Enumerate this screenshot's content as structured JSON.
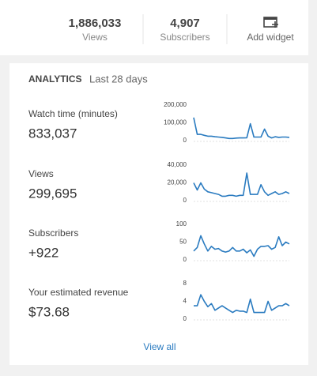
{
  "stats": [
    {
      "value": "1,886,033",
      "label": "Views"
    },
    {
      "value": "4,907",
      "label": "Subscribers"
    }
  ],
  "add_widget": "Add widget",
  "analytics": {
    "title": "ANALYTICS",
    "period": "Last 28 days",
    "metrics": [
      {
        "label": "Watch time (minutes)",
        "value": "833,037",
        "chart": {
          "type": "line",
          "color": "#2a7bc0",
          "ylim": [
            0,
            200000
          ],
          "yticks": [
            0,
            {
              "value": 100000,
              "label": "100,000"
            },
            {
              "value": 200000,
              "label": "200,000"
            }
          ],
          "values": [
            130000,
            35000,
            35000,
            30000,
            25000,
            25000,
            22000,
            20000,
            18000,
            15000,
            12000,
            12000,
            14000,
            15000,
            15000,
            16000,
            95000,
            20000,
            20000,
            20000,
            65000,
            25000,
            15000,
            22000,
            18000,
            20000,
            20000,
            18000
          ]
        }
      },
      {
        "label": "Views",
        "value": "299,695",
        "chart": {
          "type": "line",
          "color": "#2a7bc0",
          "ylim": [
            0,
            40000
          ],
          "yticks": [
            0,
            {
              "value": 20000,
              "label": "20,000"
            },
            {
              "value": 40000,
              "label": "40,000"
            }
          ],
          "values": [
            20000,
            12000,
            20000,
            13000,
            10000,
            9000,
            8000,
            7000,
            5000,
            5000,
            6000,
            6000,
            5000,
            6000,
            6000,
            31000,
            7000,
            7000,
            7000,
            18000,
            10000,
            6000,
            8000,
            10000,
            7000,
            8000,
            10000,
            8000
          ]
        }
      },
      {
        "label": "Subscribers",
        "value": "+922",
        "chart": {
          "type": "line",
          "color": "#2a7bc0",
          "ylim": [
            0,
            100
          ],
          "yticks": [
            0,
            50,
            100
          ],
          "values": [
            25,
            35,
            68,
            45,
            25,
            38,
            30,
            32,
            25,
            22,
            25,
            35,
            25,
            25,
            30,
            20,
            28,
            10,
            30,
            38,
            38,
            40,
            30,
            35,
            65,
            40,
            50,
            45
          ]
        }
      },
      {
        "label": "Your estimated revenue",
        "value": "$73.68",
        "chart": {
          "type": "line",
          "color": "#2a7bc0",
          "ylim": [
            0,
            8
          ],
          "yticks": [
            0,
            4,
            8
          ],
          "values": [
            3,
            3,
            5.5,
            4,
            2.8,
            3.5,
            2,
            2.5,
            3,
            2.5,
            2,
            1.5,
            2,
            1.8,
            1.8,
            1.5,
            4.5,
            1.5,
            1.5,
            1.5,
            1.5,
            4,
            2,
            2.5,
            3,
            3,
            3.5,
            3
          ]
        }
      }
    ],
    "view_all": "View all"
  }
}
